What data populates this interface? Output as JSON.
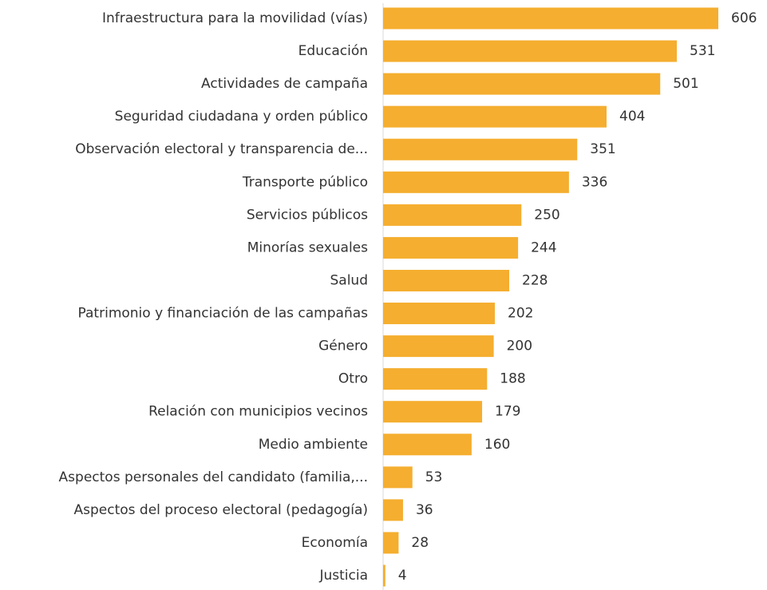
{
  "chart_data": {
    "type": "bar",
    "orientation": "horizontal",
    "categories": [
      "Infraestructura para la movilidad (vías)",
      "Educación",
      "Actividades de campaña",
      "Seguridad ciudadana y orden público",
      "Observación electoral y transparencia de...",
      "Transporte público",
      "Servicios públicos",
      "Minorías sexuales",
      "Salud",
      "Patrimonio y financiación de las campañas",
      "Género",
      "Otro",
      "Relación con municipios vecinos",
      "Medio ambiente",
      "Aspectos personales del candidato (familia,...",
      "Aspectos del proceso electoral (pedagogía)",
      "Economía",
      "Justicia"
    ],
    "values": [
      606,
      531,
      501,
      404,
      351,
      336,
      250,
      244,
      228,
      202,
      200,
      188,
      179,
      160,
      53,
      36,
      28,
      4
    ],
    "color": "#f5ae2f"
  }
}
